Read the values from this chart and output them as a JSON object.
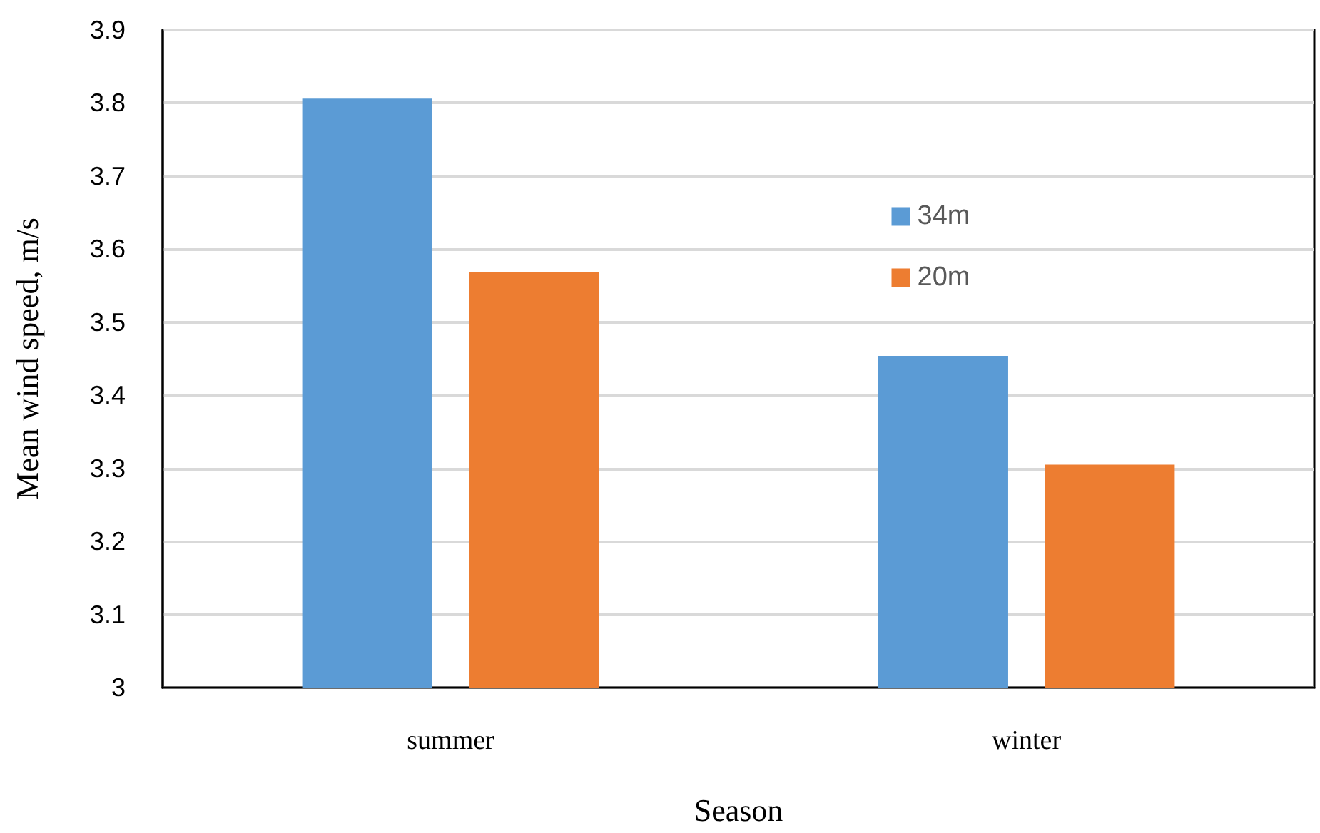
{
  "chart_data": {
    "type": "bar",
    "xlabel": "Season",
    "ylabel": "Mean wind speed, m/s",
    "categories": [
      "summer",
      "winter"
    ],
    "series": [
      {
        "name": "34m",
        "color": "#5b9bd5",
        "values": [
          3.806,
          3.454
        ]
      },
      {
        "name": "20m",
        "color": "#ed7d31",
        "values": [
          3.569,
          3.305
        ]
      }
    ],
    "ylim": [
      3,
      3.9
    ],
    "yticks": [
      3,
      3.1,
      3.2,
      3.3,
      3.4,
      3.5,
      3.6,
      3.7,
      3.8,
      3.9
    ],
    "grid": "y",
    "legend": "top right"
  }
}
